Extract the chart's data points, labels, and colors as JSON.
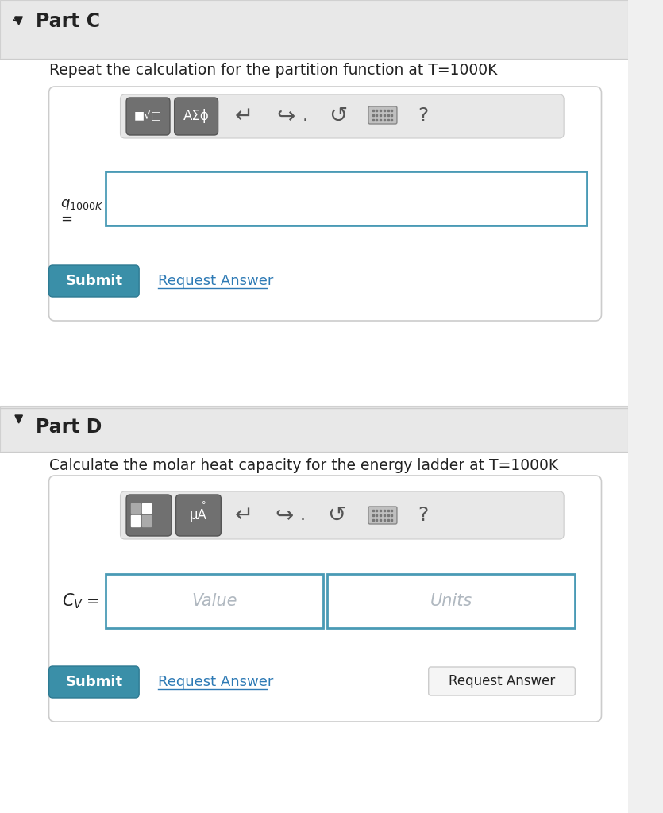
{
  "bg_color": "#f0f0f0",
  "white": "#ffffff",
  "dark_gray": "#555555",
  "mid_gray": "#888888",
  "light_gray": "#d8d8d8",
  "toolbar_bg": "#e0e0e0",
  "btn_dark": "#707070",
  "btn_border": "#999999",
  "teal_btn": "#3a8fa8",
  "teal_btn_dark": "#2e7a92",
  "input_border": "#4a9ab5",
  "input_bg": "#ffffff",
  "placeholder_color": "#b0b8c0",
  "link_color": "#2e7ab5",
  "tooltip_bg": "#f5f5f5",
  "tooltip_border": "#cccccc",
  "text_dark": "#222222",
  "part_c_title": "Part C",
  "part_c_desc": "Repeat the calculation for the partition function at T=1000K",
  "part_d_title": "Part D",
  "part_d_desc": "Calculate the molar heat capacity for the energy ladder at T=1000K",
  "submit_text": "Submit",
  "request_answer_text": "Request Answer",
  "value_placeholder": "Value",
  "units_placeholder": "Units",
  "q_label": "q₁₀₀₀K\n=",
  "cv_label": "C_V  =",
  "toolbar_symbols_c": [
    "■√□",
    "AΣϕ"
  ],
  "toolbar_symbols_d": [
    "■□",
    "μA°"
  ],
  "arrow_symbols": [
    "↵",
    "↪",
    "↺"
  ],
  "question_mark": "?",
  "keyboard_symbol": "⌨"
}
